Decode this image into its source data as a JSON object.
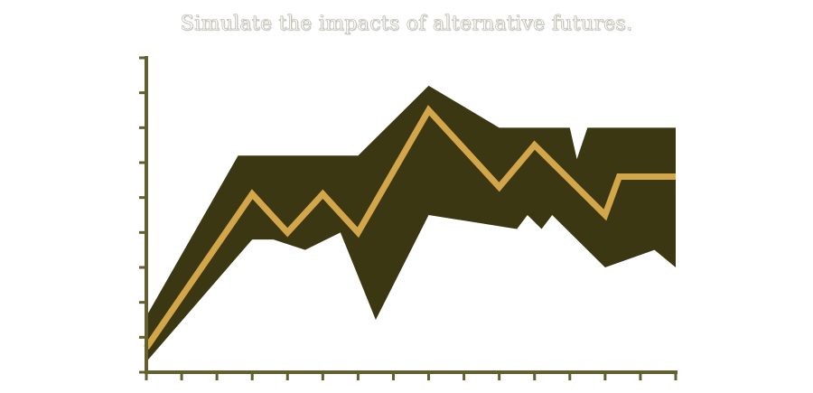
{
  "page": {
    "title": "Simulate the impacts of alternative futures."
  },
  "colors": {
    "band": "#3b3712",
    "line": "#d4a64a",
    "axis": "#645f2f",
    "background": "#ffffff"
  },
  "chart_data": {
    "type": "area",
    "title": "Simulate the impacts of alternative futures.",
    "xlabel": "",
    "ylabel": "",
    "xlim": [
      0,
      15
    ],
    "ylim": [
      0,
      9
    ],
    "x_ticks": [
      0,
      1,
      2,
      3,
      4,
      5,
      6,
      7,
      8,
      9,
      10,
      11,
      12,
      13,
      14,
      15
    ],
    "y_ticks": [
      0,
      1,
      2,
      3,
      4,
      5,
      6,
      7,
      8,
      9
    ],
    "tick_labels_shown": false,
    "grid": false,
    "legend": "none",
    "series": [
      {
        "kind": "line",
        "x": [
          0,
          3,
          4,
          5,
          6,
          8,
          10,
          11,
          13,
          13.4,
          15
        ],
        "y": [
          0.7,
          5.1,
          4.0,
          5.1,
          4.0,
          7.5,
          5.3,
          6.5,
          4.5,
          5.6,
          5.6
        ]
      },
      {
        "kind": "band",
        "upper": {
          "x": [
            0,
            2.6,
            6,
            8,
            10,
            12,
            12.2,
            12.5,
            15
          ],
          "y": [
            1.6,
            6.2,
            6.2,
            8.2,
            7.0,
            7.0,
            6.1,
            7.0,
            7.0
          ]
        },
        "lower": {
          "x": [
            0,
            3,
            3.6,
            4.5,
            5.5,
            6.5,
            8,
            10.5,
            10.8,
            11.2,
            11.5,
            13,
            14.4,
            15
          ],
          "y": [
            0.3,
            3.8,
            3.8,
            3.5,
            4.0,
            1.5,
            4.5,
            4.1,
            4.5,
            4.1,
            4.5,
            3.0,
            3.5,
            3.0
          ]
        }
      }
    ]
  }
}
